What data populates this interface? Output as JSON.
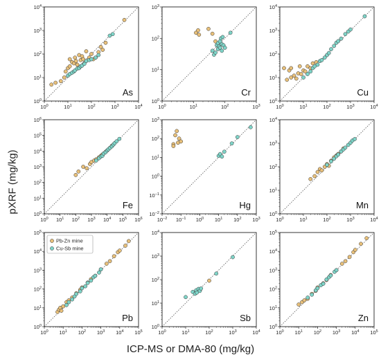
{
  "figure": {
    "ylabel": "pXRF (mg/kg)",
    "xlabel": "ICP-MS or DMA-80 (mg/kg)"
  },
  "colors": {
    "pbzn": "#e8c07a",
    "cusb": "#7fd4c8",
    "edge": "#333333"
  },
  "legend": {
    "entries": [
      "Pb-Zn mine",
      "Cu-Sb mine"
    ],
    "placement": "top-left of Pb panel"
  },
  "chart_data": [
    {
      "type": "scatter",
      "panel": "As",
      "scale": "log",
      "xlim": [
        1,
        10000
      ],
      "ylim": [
        1,
        10000
      ],
      "xticks": [
        "10^0",
        "10^1",
        "10^2",
        "10^3",
        "10^4"
      ],
      "yticks": [
        "10^0",
        "10^1",
        "10^2",
        "10^3",
        "10^4"
      ],
      "series": [
        {
          "name": "Pb-Zn mine",
          "x": [
            2,
            3,
            5,
            7,
            8,
            10,
            12,
            12,
            15,
            18,
            20,
            22,
            25,
            30,
            35,
            40,
            45,
            50,
            60,
            80,
            100,
            120,
            150,
            200,
            250,
            300,
            400,
            2500
          ],
          "y": [
            5,
            6,
            7,
            10,
            18,
            25,
            30,
            60,
            45,
            40,
            70,
            50,
            35,
            90,
            55,
            80,
            60,
            40,
            130,
            70,
            100,
            60,
            70,
            120,
            200,
            150,
            300,
            2800
          ]
        },
        {
          "name": "Cu-Sb mine",
          "x": [
            10,
            12,
            15,
            18,
            20,
            25,
            30,
            35,
            40,
            50,
            60,
            80,
            100,
            150,
            200,
            600,
            800
          ],
          "y": [
            12,
            14,
            16,
            18,
            20,
            24,
            25,
            30,
            32,
            38,
            50,
            55,
            60,
            70,
            90,
            600,
            700
          ]
        }
      ]
    },
    {
      "type": "scatter",
      "panel": "Cr",
      "scale": "log",
      "xlim": [
        1,
        1000
      ],
      "ylim": [
        1,
        1000
      ],
      "xticks": [
        "10^0",
        "10^1",
        "10^2",
        "10^3"
      ],
      "yticks": [
        "10^0",
        "10^1",
        "10^2",
        "10^3"
      ],
      "series": [
        {
          "name": "Pb-Zn mine",
          "x": [
            12,
            15,
            14,
            30,
            40,
            50
          ],
          "y": [
            150,
            130,
            180,
            200,
            140,
            80
          ]
        },
        {
          "name": "Cu-Sb mine",
          "x": [
            40,
            45,
            50,
            55,
            60,
            60,
            65,
            70,
            70,
            75,
            80,
            80,
            85,
            90,
            100,
            150
          ],
          "y": [
            40,
            30,
            35,
            60,
            45,
            70,
            55,
            80,
            50,
            100,
            65,
            40,
            110,
            60,
            50,
            150
          ]
        }
      ]
    },
    {
      "type": "scatter",
      "panel": "Cu",
      "scale": "log",
      "xlim": [
        1,
        10000
      ],
      "ylim": [
        1,
        10000
      ],
      "xticks": [
        "10^0",
        "10^1",
        "10^2",
        "10^3",
        "10^4"
      ],
      "yticks": [
        "10^0",
        "10^1",
        "10^2",
        "10^3",
        "10^4"
      ],
      "series": [
        {
          "name": "Pb-Zn mine",
          "x": [
            1.5,
            2,
            2.5,
            3,
            3,
            4,
            5,
            6,
            7,
            8,
            10,
            12,
            15,
            20,
            25,
            35
          ],
          "y": [
            25,
            8,
            20,
            25,
            10,
            12,
            9,
            15,
            30,
            14,
            20,
            18,
            30,
            25,
            40,
            45
          ]
        },
        {
          "name": "Cu-Sb mine",
          "x": [
            10,
            15,
            20,
            25,
            30,
            40,
            50,
            60,
            80,
            100,
            120,
            150,
            200,
            250,
            300,
            400,
            600,
            800,
            1000,
            4000
          ],
          "y": [
            10,
            14,
            18,
            25,
            30,
            35,
            50,
            55,
            70,
            90,
            110,
            160,
            220,
            300,
            350,
            450,
            700,
            900,
            1100,
            4000
          ]
        }
      ]
    },
    {
      "type": "scatter",
      "panel": "Fe",
      "scale": "log",
      "xlim": [
        1,
        1000000
      ],
      "ylim": [
        1,
        1000000
      ],
      "xticks": [
        "10^0",
        "10^1",
        "10^2",
        "10^3",
        "10^4",
        "10^5",
        "10^6"
      ],
      "yticks": [
        "10^0",
        "10^1",
        "10^2",
        "10^3",
        "10^4",
        "10^5",
        "10^6"
      ],
      "series": [
        {
          "name": "Pb-Zn mine",
          "x": [
            100,
            150,
            300,
            500,
            800,
            1000,
            1500,
            2000,
            3000,
            4000,
            5000,
            6000,
            8000,
            10000,
            15000,
            20000
          ],
          "y": [
            300,
            500,
            1000,
            800,
            1500,
            2000,
            2500,
            3000,
            4000,
            5000,
            6000,
            7000,
            9000,
            11000,
            16000,
            22000
          ]
        },
        {
          "name": "Cu-Sb mine",
          "x": [
            2000,
            3000,
            4000,
            5000,
            6000,
            8000,
            10000,
            12000,
            15000,
            20000,
            25000,
            30000,
            40000,
            60000
          ],
          "y": [
            2500,
            3500,
            4500,
            5000,
            7000,
            8500,
            11000,
            13000,
            16000,
            20000,
            26000,
            32000,
            42000,
            60000
          ]
        }
      ]
    },
    {
      "type": "scatter",
      "panel": "Hg",
      "scale": "log",
      "xlim": [
        0.01,
        1000
      ],
      "ylim": [
        0.01,
        1000
      ],
      "xticks": [
        "10^-2",
        "10^-1",
        "10^0",
        "10^1",
        "10^2",
        "10^3"
      ],
      "yticks": [
        "10^-2",
        "10^-1",
        "10^0",
        "10^1",
        "10^2",
        "10^3"
      ],
      "series": [
        {
          "name": "Pb-Zn mine",
          "x": [
            0.04,
            0.05,
            0.06,
            0.07,
            0.08,
            0.1,
            0.04
          ],
          "y": [
            50,
            150,
            250,
            60,
            100,
            70,
            40
          ]
        },
        {
          "name": "Cu-Sb mine",
          "x": [
            10,
            12,
            15,
            20,
            50,
            100,
            500
          ],
          "y": [
            12,
            15,
            11,
            20,
            55,
            120,
            400
          ]
        }
      ]
    },
    {
      "type": "scatter",
      "panel": "Mn",
      "scale": "log",
      "xlim": [
        1,
        10000
      ],
      "ylim": [
        1,
        10000
      ],
      "xticks": [
        "10^0",
        "10^1",
        "10^2",
        "10^3",
        "10^4"
      ],
      "yticks": [
        "10^0",
        "10^1",
        "10^2",
        "10^3",
        "10^4"
      ],
      "series": [
        {
          "name": "Pb-Zn mine",
          "x": [
            20,
            30,
            40,
            50,
            60,
            80,
            100,
            120,
            150,
            200,
            250,
            300,
            400,
            500
          ],
          "y": [
            30,
            40,
            60,
            80,
            70,
            100,
            130,
            110,
            180,
            250,
            300,
            350,
            450,
            600
          ]
        },
        {
          "name": "Cu-Sb mine",
          "x": [
            100,
            150,
            200,
            250,
            300,
            400,
            500,
            600,
            800,
            1000,
            1200,
            1500
          ],
          "y": [
            120,
            170,
            220,
            280,
            330,
            450,
            550,
            650,
            850,
            1050,
            1300,
            1500
          ]
        }
      ]
    },
    {
      "type": "scatter",
      "panel": "Pb",
      "scale": "log",
      "xlim": [
        1,
        100000
      ],
      "ylim": [
        1,
        100000
      ],
      "xticks": [
        "10^0",
        "10^1",
        "10^2",
        "10^3",
        "10^4",
        "10^5"
      ],
      "yticks": [
        "10^0",
        "10^1",
        "10^2",
        "10^3",
        "10^4",
        "10^5"
      ],
      "series": [
        {
          "name": "Pb-Zn mine",
          "x": [
            5,
            6,
            7,
            8,
            10,
            15,
            20,
            30,
            50,
            80,
            100,
            200,
            300,
            500,
            1000,
            2000,
            3000,
            5000,
            8000,
            10000,
            20000,
            30000
          ],
          "y": [
            6,
            8,
            10,
            7,
            12,
            20,
            25,
            35,
            60,
            90,
            120,
            220,
            330,
            500,
            1100,
            2200,
            3000,
            5500,
            9000,
            11000,
            20000,
            35000
          ]
        },
        {
          "name": "Cu-Sb mine",
          "x": [
            15,
            20,
            30,
            40,
            50,
            80,
            100,
            150,
            200,
            300,
            400,
            500,
            800,
            1000
          ],
          "y": [
            14,
            20,
            28,
            40,
            55,
            75,
            110,
            140,
            210,
            280,
            420,
            500,
            750,
            1100
          ]
        }
      ]
    },
    {
      "type": "scatter",
      "panel": "Sb",
      "scale": "log",
      "xlim": [
        1,
        10000
      ],
      "ylim": [
        1,
        10000
      ],
      "xticks": [
        "10^0",
        "10^1",
        "10^2",
        "10^3",
        "10^4"
      ],
      "yticks": [
        "10^0",
        "10^1",
        "10^2",
        "10^3",
        "10^4"
      ],
      "series": [
        {
          "name": "Pb-Zn mine",
          "x": [
            40,
            100
          ],
          "y": [
            35,
            90
          ]
        },
        {
          "name": "Cu-Sb mine",
          "x": [
            10,
            20,
            25,
            28,
            30,
            35,
            40,
            45,
            200,
            1000
          ],
          "y": [
            18,
            30,
            25,
            35,
            28,
            40,
            33,
            42,
            180,
            900
          ]
        }
      ]
    },
    {
      "type": "scatter",
      "panel": "Zn",
      "scale": "log",
      "xlim": [
        1,
        100000
      ],
      "ylim": [
        1,
        100000
      ],
      "xticks": [
        "10^0",
        "10^1",
        "10^2",
        "10^3",
        "10^4",
        "10^5"
      ],
      "yticks": [
        "10^0",
        "10^1",
        "10^2",
        "10^3",
        "10^4",
        "10^5"
      ],
      "series": [
        {
          "name": "Pb-Zn mine",
          "x": [
            10,
            15,
            20,
            30,
            50,
            80,
            100,
            200,
            300,
            500,
            1000,
            2000,
            3000,
            5000,
            8000,
            10000,
            20000,
            40000
          ],
          "y": [
            15,
            20,
            25,
            30,
            55,
            80,
            120,
            200,
            300,
            550,
            1000,
            2200,
            3000,
            5000,
            9000,
            12000,
            25000,
            50000
          ]
        },
        {
          "name": "Cu-Sb mine",
          "x": [
            30,
            50,
            80,
            100,
            150,
            200,
            300,
            400,
            500,
            800,
            1000
          ],
          "y": [
            35,
            50,
            85,
            110,
            160,
            190,
            320,
            420,
            520,
            820,
            1000
          ]
        }
      ]
    }
  ]
}
